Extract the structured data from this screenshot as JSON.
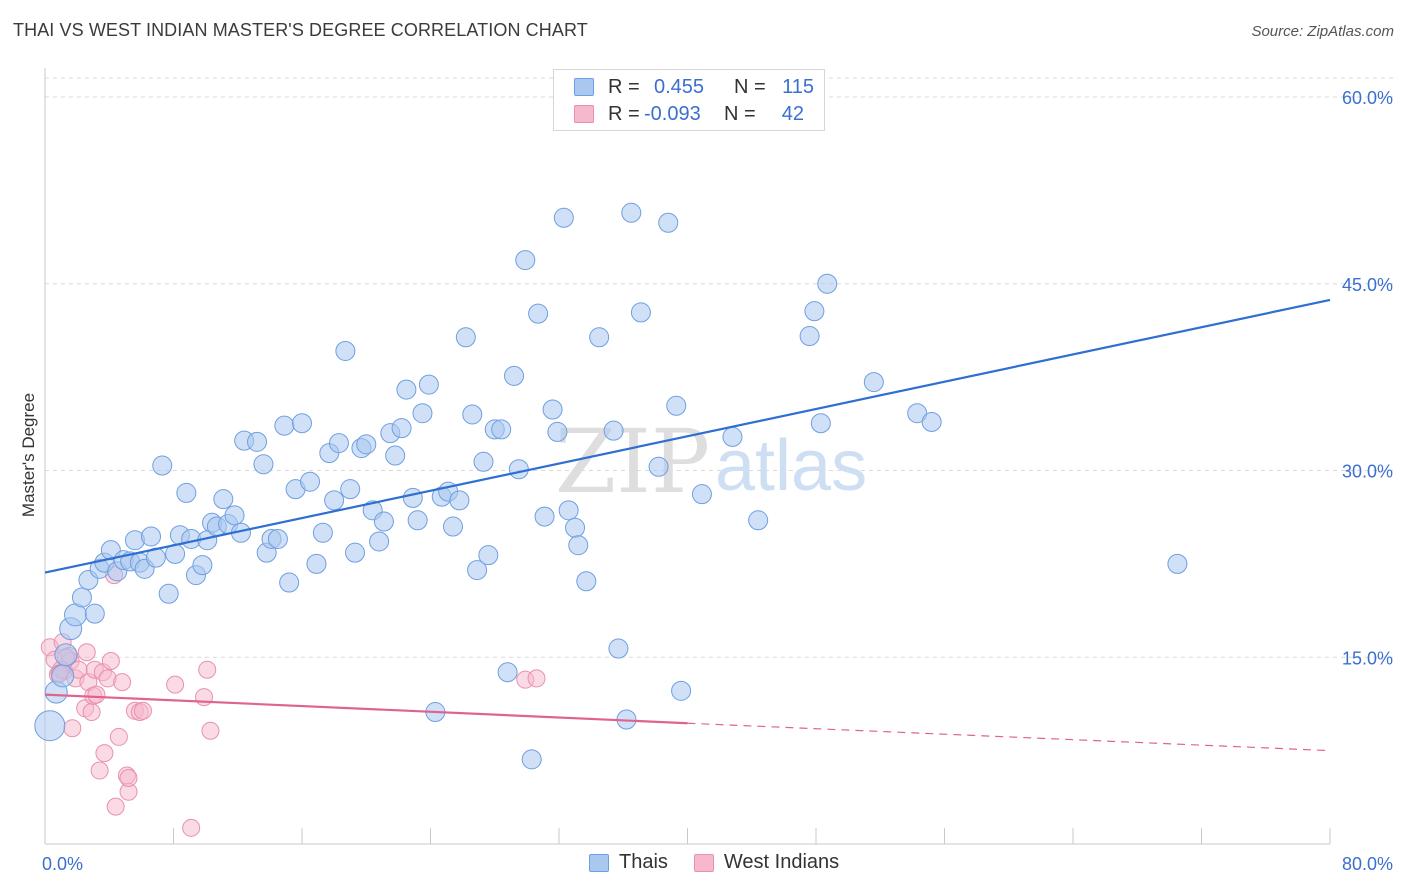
{
  "title": "THAI VS WEST INDIAN MASTER'S DEGREE CORRELATION CHART",
  "source": "Source: ZipAtlas.com",
  "watermark": {
    "zip": "ZIP",
    "atlas": "atlas"
  },
  "colors": {
    "blue_fill": "#a9c8f0",
    "blue_stroke": "#6f9fe0",
    "blue_line": "#2f6fd1",
    "pink_fill": "#f6b8cc",
    "pink_stroke": "#e990ae",
    "pink_line": "#e0638f",
    "axis_label": "#3b6fcf",
    "grid": "#d9d9d9"
  },
  "legend": {
    "rows": [
      {
        "r_label": "R =",
        "r_value": "0.455",
        "n_label": "N =",
        "n_value": "115",
        "series": "Thais"
      },
      {
        "r_label": "R =",
        "r_value": "-0.093",
        "n_label": "N =",
        "n_value": "42",
        "series": "West Indians"
      }
    ]
  },
  "bottom_legend": [
    "Thais",
    "West Indians"
  ],
  "chart_data": {
    "type": "scatter",
    "title": "THAI VS WEST INDIAN MASTER'S DEGREE CORRELATION CHART",
    "xlabel": "",
    "ylabel": "Master's Degree",
    "xlim": [
      0,
      80
    ],
    "ylim": [
      0,
      60
    ],
    "x_tick_labels": [
      "0.0%",
      "80.0%"
    ],
    "y_tick_labels": [
      "15.0%",
      "30.0%",
      "45.0%",
      "60.0%"
    ],
    "y_ticks": [
      15,
      30,
      45,
      60
    ],
    "grid": "horizontal dashed",
    "legend_position": "top-center",
    "series": [
      {
        "name": "Thais",
        "trend": {
          "x": [
            0,
            80
          ],
          "y": [
            21.8,
            43.7
          ],
          "style": "solid"
        },
        "points": [
          [
            0.3,
            9.5
          ],
          [
            0.7,
            12.2
          ],
          [
            1.1,
            13.5
          ],
          [
            1.3,
            15.2
          ],
          [
            1.6,
            17.3
          ],
          [
            1.9,
            18.4
          ],
          [
            2.3,
            19.8
          ],
          [
            2.7,
            21.2
          ],
          [
            3.1,
            18.5
          ],
          [
            3.4,
            22.1
          ],
          [
            3.7,
            22.6
          ],
          [
            4.1,
            23.6
          ],
          [
            4.5,
            21.9
          ],
          [
            4.9,
            22.8
          ],
          [
            5.3,
            22.7
          ],
          [
            5.6,
            24.4
          ],
          [
            5.9,
            22.6
          ],
          [
            6.2,
            22.1
          ],
          [
            6.6,
            24.7
          ],
          [
            6.9,
            23.0
          ],
          [
            7.3,
            30.4
          ],
          [
            7.7,
            20.1
          ],
          [
            8.1,
            23.3
          ],
          [
            8.4,
            24.8
          ],
          [
            8.8,
            28.2
          ],
          [
            9.1,
            24.5
          ],
          [
            9.4,
            21.6
          ],
          [
            9.8,
            22.4
          ],
          [
            10.1,
            24.4
          ],
          [
            10.4,
            25.8
          ],
          [
            10.7,
            25.5
          ],
          [
            11.1,
            27.7
          ],
          [
            11.4,
            25.7
          ],
          [
            11.8,
            26.4
          ],
          [
            12.2,
            25.0
          ],
          [
            12.4,
            32.4
          ],
          [
            13.2,
            32.3
          ],
          [
            13.6,
            30.5
          ],
          [
            13.8,
            23.4
          ],
          [
            14.1,
            24.5
          ],
          [
            14.5,
            24.5
          ],
          [
            14.9,
            33.6
          ],
          [
            15.2,
            21.0
          ],
          [
            15.6,
            28.5
          ],
          [
            16.0,
            33.8
          ],
          [
            16.5,
            29.1
          ],
          [
            16.9,
            22.5
          ],
          [
            17.3,
            25.0
          ],
          [
            17.7,
            31.4
          ],
          [
            18.0,
            27.6
          ],
          [
            18.3,
            32.2
          ],
          [
            18.7,
            39.6
          ],
          [
            19.0,
            28.5
          ],
          [
            19.3,
            23.4
          ],
          [
            19.7,
            31.8
          ],
          [
            20.0,
            32.1
          ],
          [
            20.4,
            26.8
          ],
          [
            20.8,
            24.3
          ],
          [
            21.1,
            25.9
          ],
          [
            21.5,
            33.0
          ],
          [
            21.8,
            31.2
          ],
          [
            22.2,
            33.4
          ],
          [
            22.5,
            36.5
          ],
          [
            22.9,
            27.8
          ],
          [
            23.2,
            26.0
          ],
          [
            23.5,
            34.6
          ],
          [
            23.9,
            36.9
          ],
          [
            24.3,
            10.6
          ],
          [
            24.7,
            27.9
          ],
          [
            25.1,
            28.3
          ],
          [
            25.4,
            25.5
          ],
          [
            25.8,
            27.6
          ],
          [
            26.2,
            40.7
          ],
          [
            26.6,
            34.5
          ],
          [
            26.9,
            22.0
          ],
          [
            27.3,
            30.7
          ],
          [
            27.6,
            23.2
          ],
          [
            28.0,
            33.3
          ],
          [
            28.4,
            33.3
          ],
          [
            28.8,
            13.8
          ],
          [
            29.2,
            37.6
          ],
          [
            29.5,
            30.1
          ],
          [
            29.9,
            46.9
          ],
          [
            30.3,
            6.8
          ],
          [
            30.7,
            42.6
          ],
          [
            31.1,
            26.3
          ],
          [
            31.6,
            34.9
          ],
          [
            31.9,
            33.1
          ],
          [
            32.3,
            50.3
          ],
          [
            32.6,
            26.8
          ],
          [
            33.0,
            25.4
          ],
          [
            33.2,
            24.0
          ],
          [
            33.7,
            21.1
          ],
          [
            34.5,
            40.7
          ],
          [
            35.4,
            33.2
          ],
          [
            35.7,
            15.7
          ],
          [
            36.2,
            10.0
          ],
          [
            36.5,
            50.7
          ],
          [
            37.1,
            42.7
          ],
          [
            38.2,
            30.3
          ],
          [
            38.8,
            49.9
          ],
          [
            39.3,
            35.2
          ],
          [
            39.6,
            12.3
          ],
          [
            40.9,
            28.1
          ],
          [
            42.8,
            32.7
          ],
          [
            44.4,
            26.0
          ],
          [
            47.6,
            40.8
          ],
          [
            47.9,
            42.8
          ],
          [
            48.3,
            33.8
          ],
          [
            48.7,
            45.0
          ],
          [
            51.6,
            37.1
          ],
          [
            54.3,
            34.6
          ],
          [
            55.2,
            33.9
          ],
          [
            70.5,
            22.5
          ]
        ]
      },
      {
        "name": "West Indians",
        "trend": {
          "x": [
            0,
            40,
            80
          ],
          "y": [
            12.0,
            9.7,
            7.5
          ],
          "solid_until": 40
        },
        "points": [
          [
            0.3,
            15.8
          ],
          [
            0.6,
            14.8
          ],
          [
            0.8,
            13.6
          ],
          [
            1.1,
            16.2
          ],
          [
            1.2,
            13.9
          ],
          [
            1.5,
            15.1
          ],
          [
            1.6,
            14.7
          ],
          [
            1.7,
            9.3
          ],
          [
            1.9,
            13.3
          ],
          [
            2.1,
            14.0
          ],
          [
            2.5,
            10.9
          ],
          [
            2.6,
            15.4
          ],
          [
            2.7,
            13.0
          ],
          [
            2.9,
            10.6
          ],
          [
            3.0,
            11.9
          ],
          [
            3.1,
            14.0
          ],
          [
            3.2,
            12.0
          ],
          [
            3.4,
            5.9
          ],
          [
            3.6,
            13.8
          ],
          [
            3.7,
            7.3
          ],
          [
            3.9,
            13.3
          ],
          [
            4.1,
            14.7
          ],
          [
            4.3,
            21.6
          ],
          [
            4.4,
            3.0
          ],
          [
            4.6,
            8.6
          ],
          [
            4.8,
            13.0
          ],
          [
            5.1,
            5.5
          ],
          [
            5.2,
            4.2
          ],
          [
            5.6,
            10.7
          ],
          [
            5.9,
            10.6
          ],
          [
            6.1,
            10.7
          ],
          [
            8.1,
            12.8
          ],
          [
            9.1,
            1.3
          ],
          [
            9.9,
            11.8
          ],
          [
            10.1,
            14.0
          ],
          [
            10.3,
            9.1
          ],
          [
            5.2,
            5.3
          ],
          [
            1.0,
            14.0
          ],
          [
            1.3,
            15.0
          ],
          [
            0.9,
            13.7
          ],
          [
            29.9,
            13.2
          ],
          [
            30.6,
            13.3
          ]
        ]
      }
    ]
  }
}
